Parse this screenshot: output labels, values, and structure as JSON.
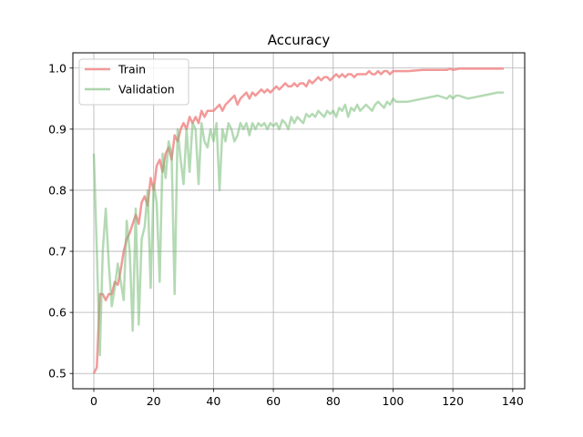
{
  "chart_data": {
    "type": "line",
    "title": "Accuracy",
    "xlabel": "",
    "ylabel": "",
    "xlim": [
      -7,
      144
    ],
    "ylim": [
      0.475,
      1.025
    ],
    "xticks": [
      0,
      20,
      40,
      60,
      80,
      100,
      120,
      140
    ],
    "yticks": [
      0.5,
      0.6,
      0.7,
      0.8,
      0.9,
      1.0
    ],
    "xtick_labels": [
      "0",
      "20",
      "40",
      "60",
      "80",
      "100",
      "120",
      "140"
    ],
    "ytick_labels": [
      "0.5",
      "0.6",
      "0.7",
      "0.8",
      "0.9",
      "1.0"
    ],
    "grid": true,
    "legend_position": "top-left",
    "series": [
      {
        "name": "Train",
        "color": "#f08080",
        "x": [
          0,
          1,
          2,
          3,
          4,
          5,
          6,
          7,
          8,
          9,
          10,
          11,
          12,
          13,
          14,
          15,
          16,
          17,
          18,
          19,
          20,
          21,
          22,
          23,
          24,
          25,
          26,
          27,
          28,
          29,
          30,
          31,
          32,
          33,
          34,
          35,
          36,
          37,
          38,
          39,
          40,
          41,
          42,
          43,
          44,
          45,
          46,
          47,
          48,
          49,
          50,
          51,
          52,
          53,
          54,
          55,
          56,
          57,
          58,
          59,
          60,
          61,
          62,
          63,
          64,
          65,
          66,
          67,
          68,
          69,
          70,
          71,
          72,
          73,
          74,
          75,
          76,
          77,
          78,
          79,
          80,
          81,
          82,
          83,
          84,
          85,
          86,
          87,
          88,
          89,
          90,
          91,
          92,
          93,
          94,
          95,
          96,
          97,
          98,
          99,
          100,
          105,
          110,
          115,
          118,
          119,
          120,
          121,
          122,
          125,
          130,
          135,
          137
        ],
        "values": [
          0.5,
          0.51,
          0.63,
          0.63,
          0.62,
          0.63,
          0.63,
          0.65,
          0.645,
          0.67,
          0.7,
          0.72,
          0.73,
          0.745,
          0.76,
          0.745,
          0.78,
          0.79,
          0.775,
          0.82,
          0.8,
          0.84,
          0.85,
          0.83,
          0.86,
          0.87,
          0.85,
          0.89,
          0.88,
          0.9,
          0.91,
          0.9,
          0.92,
          0.91,
          0.92,
          0.91,
          0.93,
          0.92,
          0.93,
          0.93,
          0.93,
          0.935,
          0.94,
          0.93,
          0.94,
          0.945,
          0.95,
          0.955,
          0.94,
          0.95,
          0.955,
          0.96,
          0.95,
          0.96,
          0.955,
          0.96,
          0.965,
          0.96,
          0.965,
          0.96,
          0.965,
          0.97,
          0.965,
          0.97,
          0.975,
          0.97,
          0.97,
          0.975,
          0.97,
          0.975,
          0.975,
          0.97,
          0.98,
          0.975,
          0.98,
          0.985,
          0.98,
          0.985,
          0.985,
          0.98,
          0.985,
          0.99,
          0.985,
          0.99,
          0.985,
          0.99,
          0.99,
          0.985,
          0.99,
          0.99,
          0.99,
          0.99,
          0.995,
          0.99,
          0.99,
          0.995,
          0.99,
          0.995,
          0.995,
          0.99,
          0.995,
          0.995,
          0.997,
          0.997,
          0.997,
          0.999,
          0.997,
          0.998,
          0.999,
          0.999,
          0.999,
          0.999,
          0.999
        ]
      },
      {
        "name": "Validation",
        "color": "#77bb77",
        "x": [
          0,
          1,
          2,
          3,
          4,
          5,
          6,
          7,
          8,
          9,
          10,
          11,
          12,
          13,
          14,
          15,
          16,
          17,
          18,
          19,
          20,
          21,
          22,
          23,
          24,
          25,
          26,
          27,
          28,
          29,
          30,
          31,
          32,
          33,
          34,
          35,
          36,
          37,
          38,
          39,
          40,
          41,
          42,
          43,
          44,
          45,
          46,
          47,
          48,
          49,
          50,
          51,
          52,
          53,
          54,
          55,
          56,
          57,
          58,
          59,
          60,
          61,
          62,
          63,
          64,
          65,
          66,
          67,
          68,
          69,
          70,
          71,
          72,
          73,
          74,
          75,
          76,
          77,
          78,
          79,
          80,
          81,
          82,
          83,
          84,
          85,
          86,
          87,
          88,
          89,
          90,
          91,
          92,
          93,
          94,
          95,
          96,
          97,
          98,
          99,
          100,
          101,
          105,
          110,
          115,
          118,
          119,
          120,
          121,
          122,
          125,
          130,
          135,
          137
        ],
        "values": [
          0.86,
          0.7,
          0.53,
          0.7,
          0.77,
          0.68,
          0.61,
          0.64,
          0.68,
          0.65,
          0.62,
          0.75,
          0.7,
          0.57,
          0.77,
          0.58,
          0.72,
          0.74,
          0.8,
          0.64,
          0.81,
          0.78,
          0.65,
          0.86,
          0.82,
          0.88,
          0.86,
          0.63,
          0.9,
          0.85,
          0.81,
          0.9,
          0.83,
          0.91,
          0.9,
          0.81,
          0.91,
          0.88,
          0.87,
          0.9,
          0.88,
          0.91,
          0.8,
          0.9,
          0.88,
          0.91,
          0.9,
          0.88,
          0.89,
          0.91,
          0.9,
          0.91,
          0.89,
          0.91,
          0.9,
          0.91,
          0.905,
          0.91,
          0.9,
          0.91,
          0.905,
          0.91,
          0.9,
          0.915,
          0.91,
          0.9,
          0.92,
          0.91,
          0.92,
          0.915,
          0.91,
          0.925,
          0.92,
          0.925,
          0.92,
          0.93,
          0.925,
          0.92,
          0.93,
          0.925,
          0.93,
          0.92,
          0.935,
          0.93,
          0.94,
          0.92,
          0.935,
          0.93,
          0.94,
          0.93,
          0.935,
          0.94,
          0.935,
          0.93,
          0.94,
          0.945,
          0.94,
          0.935,
          0.945,
          0.94,
          0.95,
          0.945,
          0.945,
          0.95,
          0.955,
          0.95,
          0.955,
          0.95,
          0.955,
          0.955,
          0.95,
          0.955,
          0.96,
          0.96
        ]
      }
    ]
  }
}
